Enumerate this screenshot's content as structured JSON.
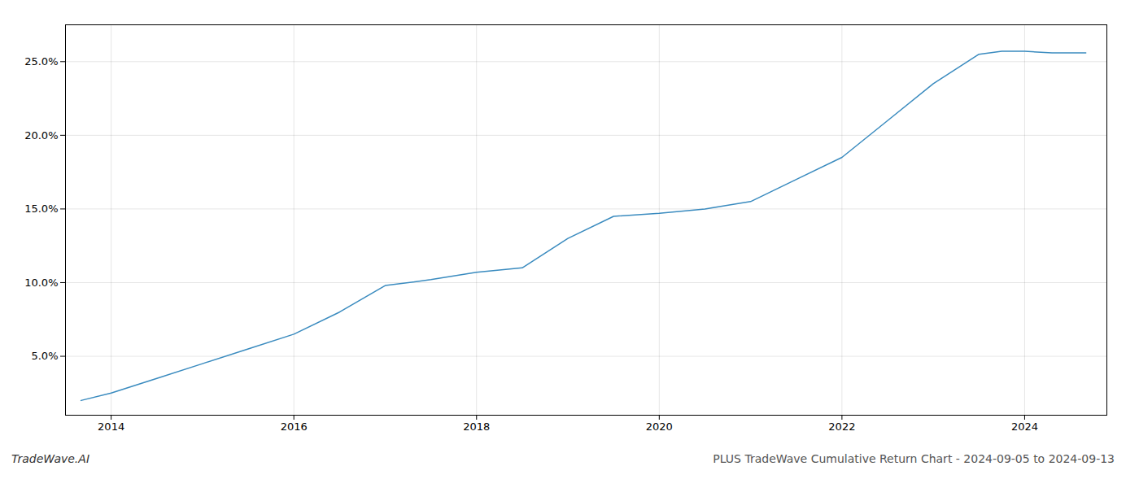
{
  "chart_data": {
    "type": "line",
    "title": "PLUS TradeWave Cumulative Return Chart - 2024-09-05 to 2024-09-13",
    "annotations": [
      "TradeWave.AI"
    ],
    "x": [
      2013.67,
      2014.0,
      2014.5,
      2015.0,
      2015.5,
      2016.0,
      2016.5,
      2017.0,
      2017.5,
      2018.0,
      2018.5,
      2019.0,
      2019.5,
      2020.0,
      2020.5,
      2021.0,
      2021.5,
      2022.0,
      2022.5,
      2023.0,
      2023.5,
      2023.75,
      2024.0,
      2024.3,
      2024.67
    ],
    "values": [
      2.0,
      2.5,
      3.5,
      4.5,
      5.5,
      6.5,
      8.0,
      9.8,
      10.2,
      10.7,
      11.0,
      13.0,
      14.5,
      14.7,
      15.0,
      15.5,
      17.0,
      18.5,
      21.0,
      23.5,
      25.5,
      25.7,
      25.7,
      25.6,
      25.6
    ],
    "color": "#3a8bbf",
    "xlim": [
      2013.5,
      2024.9
    ],
    "ylim": [
      1.0,
      27.5
    ],
    "xticks": [
      2014,
      2016,
      2018,
      2020,
      2022,
      2024
    ],
    "yticks": [
      {
        "value": 5.0,
        "label": "5.0%"
      },
      {
        "value": 10.0,
        "label": "10.0%"
      },
      {
        "value": 15.0,
        "label": "15.0%"
      },
      {
        "value": 20.0,
        "label": "20.0%"
      },
      {
        "value": 25.0,
        "label": "25.0%"
      }
    ],
    "grid": true
  }
}
